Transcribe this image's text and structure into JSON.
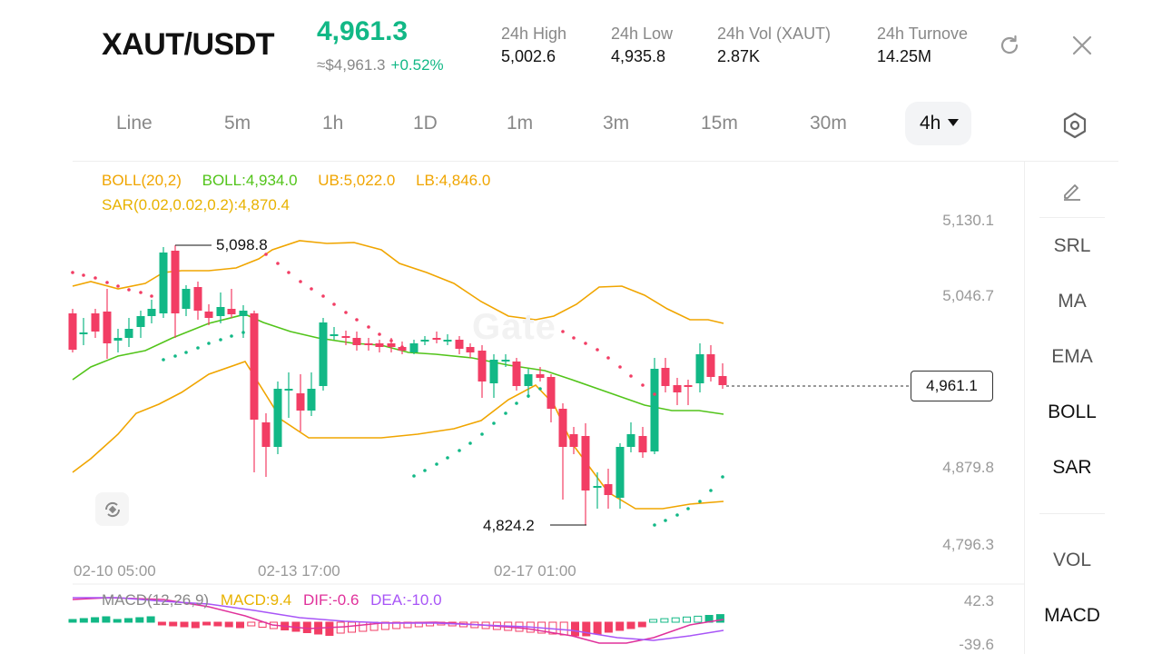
{
  "header": {
    "pair": "XAUT/USDT",
    "price": "4,961.3",
    "price_usd": "≈$4,961.3",
    "change": "+0.52%",
    "stats": [
      {
        "label": "24h  High",
        "value": "5,002.6"
      },
      {
        "label": "24h  Low",
        "value": "4,935.8"
      },
      {
        "label": "24h  Vol (XAUT)",
        "value": "2.87K"
      },
      {
        "label": "24h  Turnove",
        "value": "14.25M"
      }
    ],
    "icons": {
      "refresh": "refresh-icon",
      "close": "close-icon"
    }
  },
  "intervals": [
    "Line",
    "5m",
    "1h",
    "1D",
    "1m",
    "3m",
    "15m",
    "30m"
  ],
  "active_interval": "4h",
  "legend": {
    "boll_params": "BOLL(20,2)",
    "boll_mid": "BOLL:4,934.0",
    "boll_ub": "UB:5,022.0",
    "boll_lb": "LB:4,846.0",
    "sar": "SAR(0.02,0.02,0.2):4,870.4"
  },
  "macd_legend": {
    "params": "MACD(12,26,9)",
    "macd": "MACD:9.4",
    "dif": "DIF:-0.6",
    "dea": "DEA:-10.0"
  },
  "y_axis": [
    "5,130.1",
    "5,046.7",
    "4,879.8",
    "4,796.3"
  ],
  "macd_axis": [
    "42.3",
    "-39.6"
  ],
  "x_axis": [
    "02-10 05:00",
    "02-13 17:00",
    "02-17 01:00"
  ],
  "annotations": {
    "high": "5,098.8",
    "low": "4,824.2"
  },
  "last_price": "4,961.1",
  "toolbar": [
    "SRL",
    "MA",
    "EMA",
    "BOLL",
    "SAR",
    "VOL",
    "MACD"
  ],
  "colors": {
    "up": "#12b886",
    "down": "#f23d64",
    "boll_params": "#f0a500",
    "boll_mid": "#52c41a",
    "boll_ub": "#f0a500",
    "boll_lb": "#f0a500",
    "sar": "#e8b200",
    "macd_params": "#888888",
    "macd": "#e8b200",
    "dif": "#e0319b",
    "dea": "#a855f7"
  }
}
